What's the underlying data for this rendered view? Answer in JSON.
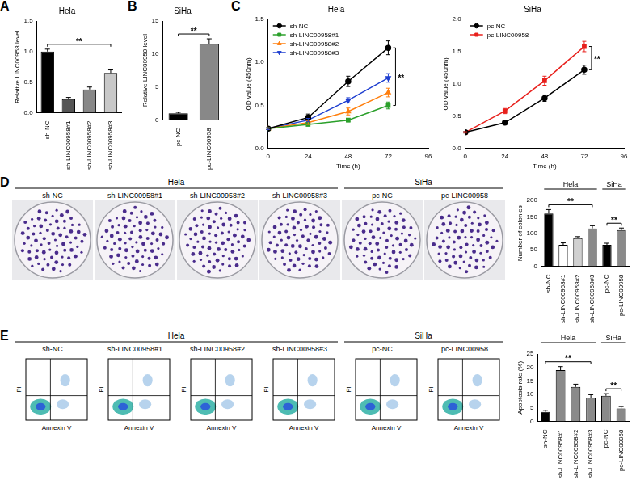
{
  "chart_data": [
    {
      "panel": "A",
      "type": "bar",
      "title": "Hela",
      "y_label": "Relative LINC00958 level",
      "categories": [
        "sh-NC",
        "sh-LINC00958#1",
        "sh-LINC00958#2",
        "sh-LINC00958#3"
      ],
      "values": [
        1.0,
        0.22,
        0.38,
        0.65
      ],
      "errors": [
        0.04,
        0.03,
        0.04,
        0.05
      ],
      "colors": [
        "#000000",
        "#555555",
        "#888888",
        "#c8c8c8"
      ],
      "ylim": [
        0,
        1.5
      ],
      "yticks": [
        {
          "value": 0,
          "label": "0.0"
        },
        {
          "value": 0.5,
          "label": "0.5"
        },
        {
          "value": 1,
          "label": "1.0"
        },
        {
          "value": 1.5,
          "label": "1.5"
        }
      ],
      "grid": false,
      "annotations": [
        {
          "text": "**",
          "from": 0,
          "to": 3
        }
      ]
    },
    {
      "panel": "B",
      "type": "bar",
      "title": "SiHa",
      "y_label": "Relative LINC00958 level",
      "categories": [
        "pc-NC",
        "pc-LINC00958"
      ],
      "values": [
        1.0,
        11.5
      ],
      "errors": [
        0.15,
        0.8
      ],
      "colors": [
        "#000000",
        "#888888"
      ],
      "ylim": [
        0,
        15
      ],
      "yticks": [
        0,
        5,
        10,
        15
      ],
      "grid": false,
      "annotations": [
        {
          "text": "**",
          "from": 0,
          "to": 1
        }
      ]
    },
    {
      "panel": "C",
      "type": "line",
      "title": "Hela",
      "x_label": "Time (h)",
      "y_label": "OD value (450nm)",
      "x": [
        0,
        24,
        48,
        72
      ],
      "series": [
        {
          "name": "sh-NC",
          "color": "#000000",
          "marker": "circle",
          "values": [
            0.23,
            0.36,
            0.78,
            1.17
          ],
          "errors": [
            0.01,
            0.04,
            0.06,
            0.08
          ]
        },
        {
          "name": "sh-LINC00958#1",
          "color": "#2ca02c",
          "marker": "square",
          "values": [
            0.23,
            0.28,
            0.33,
            0.5
          ],
          "errors": [
            0.01,
            0.02,
            0.02,
            0.04
          ]
        },
        {
          "name": "sh-LINC00958#2",
          "color": "#ff7f0e",
          "marker": "triangle",
          "values": [
            0.23,
            0.3,
            0.43,
            0.65
          ],
          "errors": [
            0.01,
            0.02,
            0.04,
            0.05
          ]
        },
        {
          "name": "sh-LINC00958#3",
          "color": "#1f3fd0",
          "marker": "triangle_down",
          "values": [
            0.23,
            0.33,
            0.56,
            0.82
          ],
          "errors": [
            0.01,
            0.02,
            0.03,
            0.05
          ]
        }
      ],
      "xlim": [
        0,
        96
      ],
      "xticks": [
        0,
        24,
        48,
        72,
        96
      ],
      "ylim": [
        0,
        1.5
      ],
      "yticks": [
        {
          "value": 0,
          "label": "0.0"
        },
        {
          "value": 0.5,
          "label": "0.5"
        },
        {
          "value": 1,
          "label": "1.0"
        },
        {
          "value": 1.5,
          "label": "1.5"
        }
      ],
      "legend": "top-left",
      "grid": false,
      "annotations": [
        {
          "text": "**",
          "x": 72,
          "between": [
            "sh-NC",
            "sh-LINC00958#1"
          ]
        }
      ]
    },
    {
      "type": "line",
      "title": "SiHa",
      "x_label": "Time (h)",
      "y_label": "OD value (450nm)",
      "x": [
        0,
        24,
        48,
        72
      ],
      "series": [
        {
          "name": "pc-NC",
          "color": "#000000",
          "marker": "circle",
          "values": [
            0.25,
            0.4,
            0.78,
            1.22
          ],
          "errors": [
            0.01,
            0.03,
            0.05,
            0.07
          ]
        },
        {
          "name": "pc-LINC00958",
          "color": "#e8201c",
          "marker": "square",
          "values": [
            0.25,
            0.58,
            1.05,
            1.58
          ],
          "errors": [
            0.01,
            0.04,
            0.07,
            0.08
          ]
        }
      ],
      "xlim": [
        0,
        96
      ],
      "xticks": [
        0,
        24,
        48,
        72,
        96
      ],
      "ylim": [
        0,
        2
      ],
      "yticks": [
        {
          "value": 0,
          "label": "0.0"
        },
        {
          "value": 0.5,
          "label": "0.5"
        },
        {
          "value": 1,
          "label": "1.0"
        },
        {
          "value": 1.5,
          "label": "1.5"
        },
        {
          "value": 2,
          "label": "2.0"
        }
      ],
      "legend": "top-left",
      "grid": false,
      "annotations": [
        {
          "text": "**",
          "x": 72,
          "between": [
            "pc-LINC00958",
            "pc-NC"
          ]
        }
      ]
    },
    {
      "type": "bar",
      "y_label": "Number of colonies",
      "categories": [
        "sh-NC",
        "sh-LINC00958#1",
        "sh-LINC00958#2",
        "sh-LINC00958#3",
        "pc-NC",
        "pc-LINC00958"
      ],
      "values": [
        160,
        65,
        85,
        115,
        65,
        110
      ],
      "errors": [
        12,
        6,
        5,
        8,
        5,
        6
      ],
      "colors": [
        "#000000",
        "#ffffff",
        "#d0d0d0",
        "#8a8a8a",
        "#000000",
        "#8a8a8a"
      ],
      "ylim": [
        0,
        200
      ],
      "yticks": [
        0,
        50,
        100,
        150,
        200
      ],
      "grid": false,
      "groups": [
        {
          "label": "Hela",
          "from": 0,
          "to": 3
        },
        {
          "label": "SiHa",
          "from": 4,
          "to": 5
        }
      ],
      "annotations": [
        {
          "text": "**",
          "from": 0,
          "to": 3
        },
        {
          "text": "**",
          "from": 4,
          "to": 5
        }
      ]
    },
    {
      "type": "bar",
      "y_label": "Apoptosis rate (%)",
      "categories": [
        "sh-NC",
        "sh-LINC00958#1",
        "sh-LINC00958#2",
        "sh-LINC00958#3",
        "pc-NC",
        "pc-LINC00958"
      ],
      "values": [
        3.5,
        19,
        12.8,
        8.8,
        9.5,
        4.8
      ],
      "errors": [
        0.6,
        1.3,
        1.0,
        1.1,
        0.8,
        0.7
      ],
      "colors": [
        "#000000",
        "#8a8a8a",
        "#8a8a8a",
        "#8a8a8a",
        "#8a8a8a",
        "#8a8a8a"
      ],
      "ylim": [
        0,
        25
      ],
      "yticks": [
        0,
        5,
        10,
        15,
        20,
        25
      ],
      "grid": false,
      "groups": [
        {
          "label": "Hela",
          "from": 0,
          "to": 3
        },
        {
          "label": "SiHa",
          "from": 4,
          "to": 5
        }
      ],
      "annotations": [
        {
          "text": "**",
          "from": 0,
          "to": 3
        },
        {
          "text": "**",
          "from": 4,
          "to": 5
        }
      ]
    }
  ],
  "colony_panel": {
    "panel": "D",
    "groups": [
      {
        "label": "Hela",
        "samples": [
          "sh-NC",
          "sh-LINC00958#1",
          "sh-LINC00958#2",
          "sh-LINC00958#3"
        ]
      },
      {
        "label": "SiHa",
        "samples": [
          "pc-NC",
          "pc-LINC00958"
        ]
      }
    ]
  },
  "flow_panel": {
    "panel": "E",
    "x_label": "Annexin V",
    "y_label": "PI",
    "groups": [
      {
        "label": "Hela",
        "samples": [
          "sh-NC",
          "sh-LINC00958#1",
          "sh-LINC00958#2",
          "sh-LINC00958#3"
        ]
      },
      {
        "label": "SiHa",
        "samples": [
          "pc-NC",
          "pc-LINC00958"
        ]
      }
    ]
  }
}
